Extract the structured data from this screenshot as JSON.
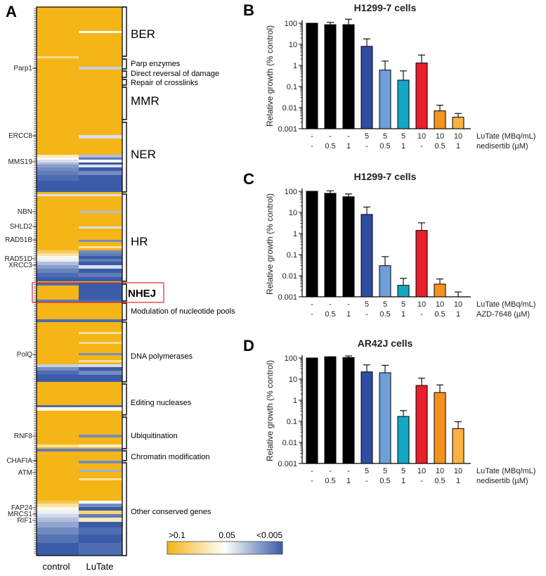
{
  "panel_a": {
    "panel_label": "A",
    "columns": [
      "control",
      "LuTate"
    ],
    "genes": [
      "Parp1",
      "ERCC8",
      "MMS19",
      "NBN",
      "SHLD2",
      "RAD51B",
      "RAD51D",
      "XRCC3",
      "PolQ",
      "RNF8",
      "CHAFIA",
      "ATM",
      "FAP24",
      "MRCS1",
      "RIF1"
    ],
    "categories": [
      "BER",
      "Parp enzymes",
      "Direct reversal of damage",
      "Repair of crosslinks",
      "MMR",
      "NER",
      "HR",
      "NHEJ",
      "Modulation of nucleotide pools",
      "DNA polymerases",
      "Editing nucleases",
      "Ubiquitination",
      "Chromatin modification",
      "Other conserved genes"
    ],
    "colorbar": {
      "labels": [
        ">0.1",
        "0.05",
        "<0.005"
      ],
      "low": "#f5b517",
      "mid": "#ffffff",
      "high": "#3a5ca8"
    },
    "highlight_color": "#d9232a"
  },
  "chart_data": [
    {
      "panel": "B",
      "type": "bar",
      "title": "H1299-7 cells",
      "ylabel": "Relative growth (% control)",
      "yscale": "log",
      "ylim": [
        0.001,
        100
      ],
      "yticks": [
        "100",
        "10",
        "1",
        "0.1",
        "0.01",
        "0.001"
      ],
      "row_labels": [
        "LuTate (MBq/mL)",
        "nedisertib (µM)"
      ],
      "condition_rows": [
        [
          "-",
          "-",
          "-",
          "5",
          "5",
          "5",
          "10",
          "10",
          "10"
        ],
        [
          "-",
          "0.5",
          "1",
          "-",
          "0.5",
          "1",
          "-",
          "0.5",
          "1"
        ]
      ],
      "values": [
        100,
        85,
        85,
        8,
        0.6,
        0.2,
        1.3,
        0.007,
        0.0035
      ],
      "errors": [
        0,
        25,
        70,
        10,
        1.0,
        0.35,
        1.8,
        0.006,
        0.0018
      ],
      "colors": [
        "#000000",
        "#000000",
        "#000000",
        "#2e4ea2",
        "#6e9fd8",
        "#16a7c4",
        "#e8202a",
        "#f6921e",
        "#fbb040"
      ]
    },
    {
      "panel": "C",
      "type": "bar",
      "title": "H1299-7 cells",
      "ylabel": "Relative growth (% control)",
      "yscale": "log",
      "ylim": [
        0.001,
        100
      ],
      "yticks": [
        "100",
        "10",
        "1",
        "0.1",
        "0.01",
        "0.001"
      ],
      "row_labels": [
        "LuTate (MBq/mL)",
        "AZD-7648 (µM)"
      ],
      "condition_rows": [
        [
          "-",
          "-",
          "-",
          "5",
          "5",
          "5",
          "10",
          "10",
          "10"
        ],
        [
          "-",
          "0.5",
          "1",
          "-",
          "0.5",
          "1",
          "-",
          "0.5",
          "1"
        ]
      ],
      "values": [
        100,
        80,
        55,
        8,
        0.03,
        0.0035,
        1.4,
        0.004,
        0.0008
      ],
      "errors": [
        0,
        25,
        20,
        10,
        0.05,
        0.004,
        1.8,
        0.003,
        0.0009
      ],
      "colors": [
        "#000000",
        "#000000",
        "#000000",
        "#2e4ea2",
        "#6e9fd8",
        "#16a7c4",
        "#e8202a",
        "#f6921e",
        "#fbb040"
      ]
    },
    {
      "panel": "D",
      "type": "bar",
      "title": "AR42J cells",
      "ylabel": "Relative growth (% control)",
      "yscale": "log",
      "ylim": [
        0.001,
        100
      ],
      "yticks": [
        "100",
        "10",
        "1",
        "0.1",
        "0.01",
        "0.001"
      ],
      "row_labels": [
        "LuTate (MBq/mL)",
        "nedisertib (µM)"
      ],
      "condition_rows": [
        [
          "-",
          "-",
          "-",
          "5",
          "5",
          "5",
          "10",
          "10",
          "10"
        ],
        [
          "-",
          "0.5",
          "1",
          "-",
          "0.5",
          "1",
          "-",
          "0.5",
          "1"
        ]
      ],
      "values": [
        100,
        115,
        105,
        22,
        20,
        0.17,
        5,
        2.3,
        0.045
      ],
      "errors": [
        0,
        0,
        20,
        25,
        25,
        0.15,
        6,
        3,
        0.05
      ],
      "colors": [
        "#000000",
        "#000000",
        "#000000",
        "#2e4ea2",
        "#6e9fd8",
        "#16a7c4",
        "#e8202a",
        "#f6921e",
        "#fbb040"
      ]
    }
  ]
}
